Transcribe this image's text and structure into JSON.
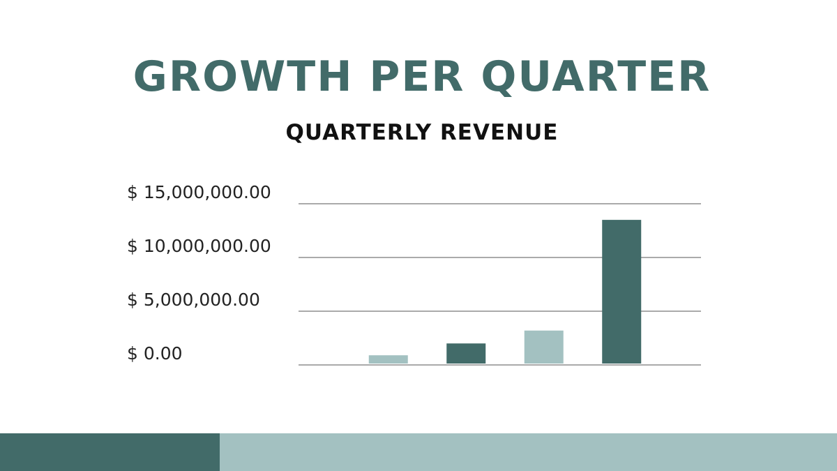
{
  "chart_data": {
    "type": "bar",
    "title": "GROWTH PER QUARTER",
    "subtitle": "QUARTERLY REVENUE",
    "categories": [
      null,
      null,
      null,
      null
    ],
    "values": [
      900000,
      2000000,
      3200000,
      13500000
    ],
    "colors": [
      "#a3c1c1",
      "#426b69",
      "#a3c1c1",
      "#426b69"
    ],
    "ylim": [
      0,
      15000000
    ],
    "yticks": [
      {
        "value": 0,
        "label": "$ 0.00"
      },
      {
        "value": 5000000,
        "label": "$ 5,000,000.00"
      },
      {
        "value": 10000000,
        "label": "$ 10,000,000.00"
      },
      {
        "value": 15000000,
        "label": "$ 15,000,000.00"
      }
    ],
    "grid": true
  }
}
